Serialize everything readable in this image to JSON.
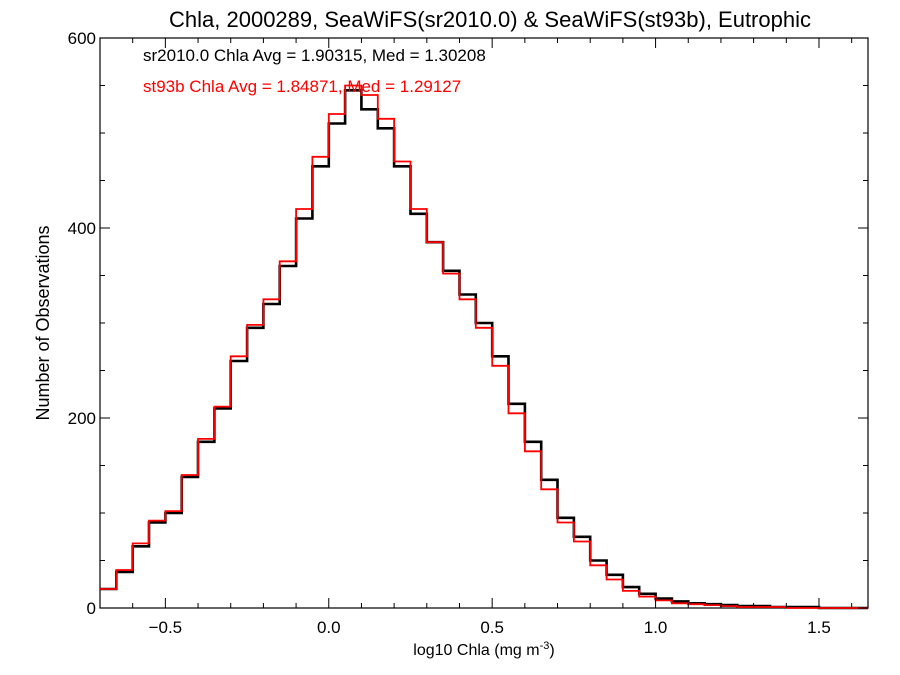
{
  "chart_data": {
    "type": "line",
    "title": "Chla, 2000289, SeaWiFS(sr2010.0) & SeaWiFS(st93b), Eutrophic",
    "xlabel": "log10 Chla (mg m",
    "xlabel_sup": "-3",
    "xlabel_close": ")",
    "ylabel": "Number of Observations",
    "xlim": [
      -0.7,
      1.65
    ],
    "ylim": [
      0,
      600
    ],
    "xticks": [
      -0.5,
      0.0,
      0.5,
      1.0,
      1.5
    ],
    "xtick_labels": [
      "−0.5",
      "0.0",
      "0.5",
      "1.0",
      "1.5"
    ],
    "yticks": [
      0,
      200,
      400,
      600
    ],
    "ytick_labels": [
      "0",
      "200",
      "400",
      "600"
    ],
    "grid": false,
    "annotations": [
      {
        "text": "sr2010.0 Chla Avg = 1.90315, Med = 1.30208",
        "color": "#000000"
      },
      {
        "text": "st93b Chla Avg = 1.84871, Med = 1.29127",
        "color": "#ff0000"
      }
    ],
    "series": [
      {
        "name": "sr2010.0",
        "color": "#000000",
        "x": [
          -0.7,
          -0.65,
          -0.6,
          -0.55,
          -0.5,
          -0.45,
          -0.4,
          -0.35,
          -0.3,
          -0.25,
          -0.2,
          -0.15,
          -0.1,
          -0.05,
          0.0,
          0.05,
          0.1,
          0.15,
          0.2,
          0.25,
          0.3,
          0.35,
          0.4,
          0.45,
          0.5,
          0.55,
          0.6,
          0.65,
          0.7,
          0.75,
          0.8,
          0.85,
          0.9,
          0.95,
          1.0,
          1.05,
          1.1,
          1.15,
          1.2,
          1.25,
          1.3,
          1.35,
          1.4,
          1.45,
          1.5,
          1.55,
          1.6,
          1.65
        ],
        "y": [
          20,
          38,
          65,
          90,
          100,
          138,
          175,
          210,
          260,
          295,
          320,
          360,
          410,
          465,
          510,
          545,
          525,
          505,
          465,
          415,
          385,
          355,
          330,
          300,
          265,
          215,
          175,
          135,
          95,
          75,
          50,
          35,
          22,
          15,
          10,
          7,
          5,
          4,
          3,
          2,
          2,
          1,
          1,
          1,
          0,
          0,
          0,
          0
        ]
      },
      {
        "name": "st93b",
        "color": "#ff0000",
        "x": [
          -0.7,
          -0.65,
          -0.6,
          -0.55,
          -0.5,
          -0.45,
          -0.4,
          -0.35,
          -0.3,
          -0.25,
          -0.2,
          -0.15,
          -0.1,
          -0.05,
          0.0,
          0.05,
          0.1,
          0.15,
          0.2,
          0.25,
          0.3,
          0.35,
          0.4,
          0.45,
          0.5,
          0.55,
          0.6,
          0.65,
          0.7,
          0.75,
          0.8,
          0.85,
          0.9,
          0.95,
          1.0,
          1.05,
          1.1,
          1.15,
          1.2,
          1.25,
          1.3,
          1.35,
          1.4,
          1.45,
          1.5,
          1.55,
          1.6,
          1.65
        ],
        "y": [
          20,
          40,
          68,
          92,
          102,
          140,
          178,
          212,
          265,
          298,
          325,
          365,
          420,
          475,
          520,
          550,
          540,
          515,
          470,
          420,
          385,
          352,
          325,
          295,
          255,
          205,
          165,
          125,
          90,
          70,
          45,
          30,
          18,
          12,
          8,
          5,
          4,
          3,
          2,
          1,
          1,
          1,
          0,
          0,
          0,
          0,
          0,
          0
        ]
      }
    ]
  }
}
